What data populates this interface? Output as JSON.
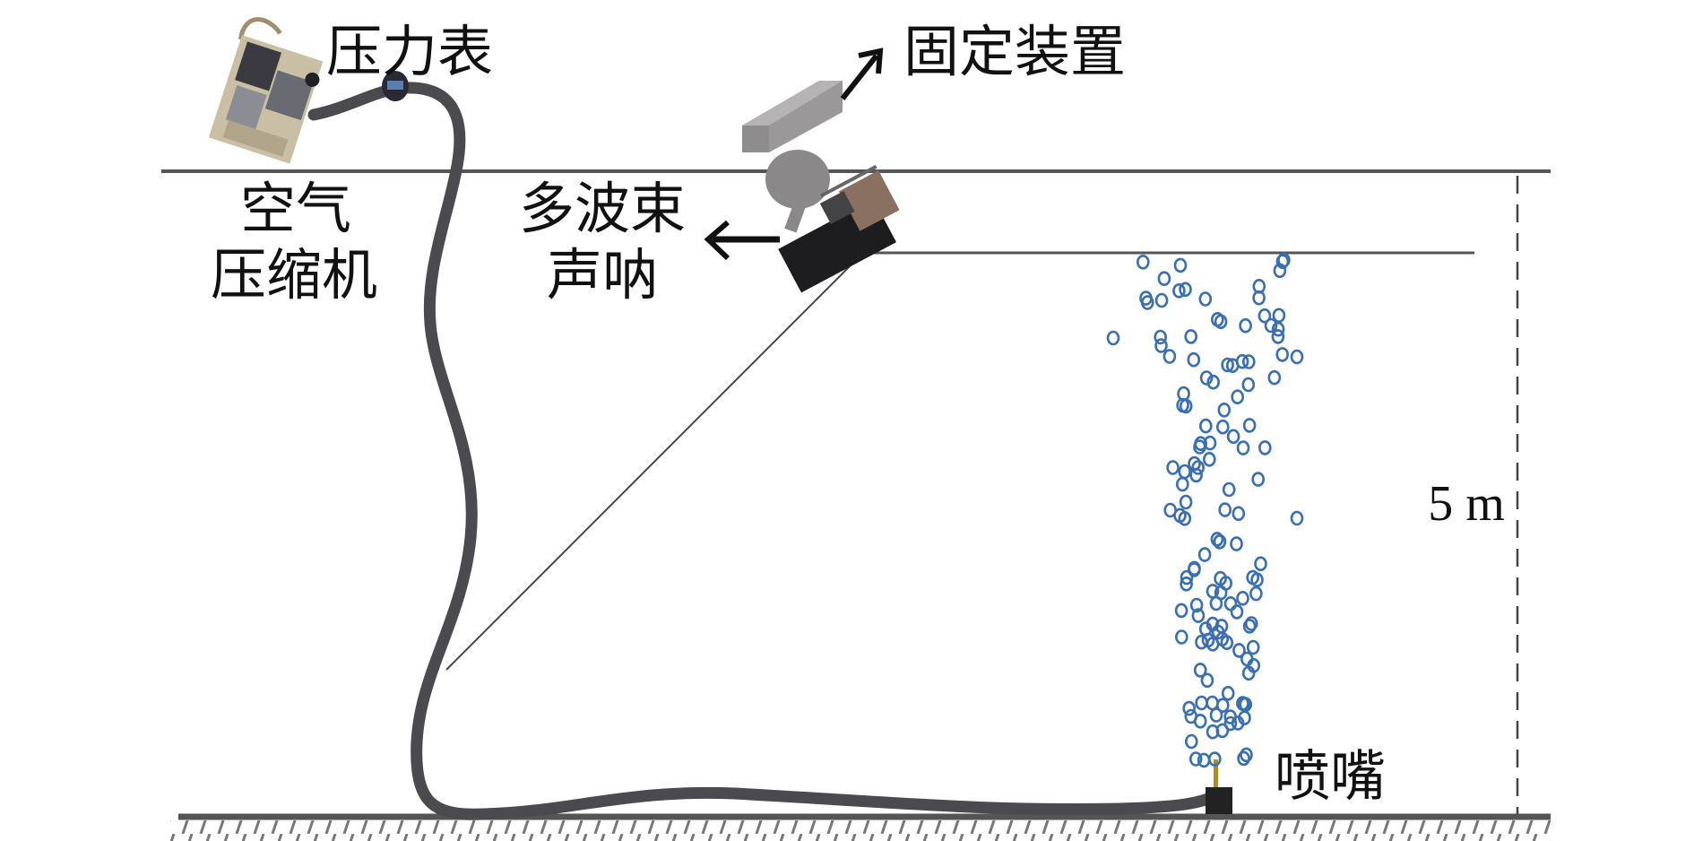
{
  "labels": {
    "pressure_gauge": "压力表",
    "fixing_device": "固定装置",
    "air_compressor_line1": "空气",
    "air_compressor_line2": "压缩机",
    "multibeam_line1": "多波束",
    "multibeam_line2": "声呐",
    "nozzle": "喷嘴",
    "depth": "5 m"
  },
  "colors": {
    "bubble": "#3a6fb0",
    "hose": "#4a4a4f",
    "fixing_device": "#9a9898",
    "line": "#555555"
  }
}
